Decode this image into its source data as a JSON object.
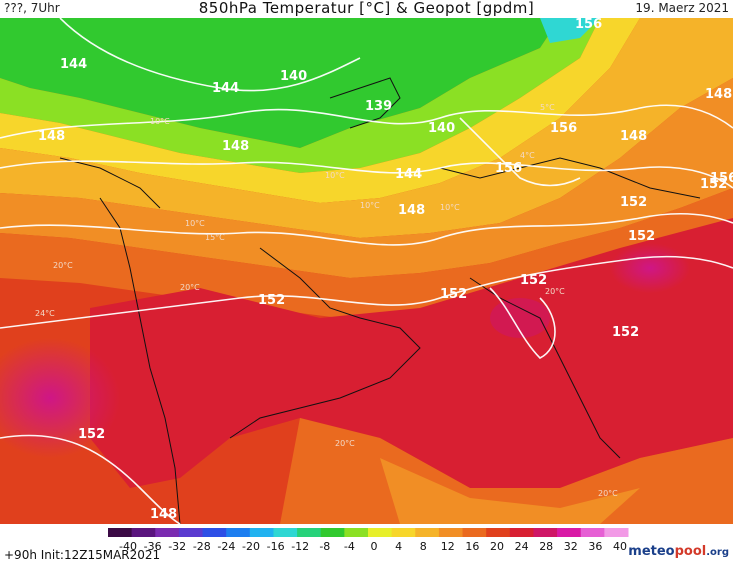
{
  "header": {
    "left_text": "???, 7Uhr",
    "title": "850hPa Temperatur [°C] & Geopot [gpdm]",
    "date": "19. Maerz 2021"
  },
  "footer": {
    "run_info": "+90h Init:12Z15MAR2021",
    "logo_a": "meteo",
    "logo_b": "pool",
    "logo_c": ".org"
  },
  "colorbar": {
    "ticks": [
      "-40",
      "-36",
      "-32",
      "-28",
      "-24",
      "-20",
      "-16",
      "-12",
      "-8",
      "-4",
      "0",
      "4",
      "8",
      "12",
      "16",
      "20",
      "24",
      "28",
      "32",
      "36",
      "40"
    ],
    "colors": [
      "#3b0a45",
      "#5a157e",
      "#7a2bb0",
      "#5a3bd0",
      "#2d4fe6",
      "#1d7ef0",
      "#21b2f0",
      "#2fd7d3",
      "#27d27a",
      "#31c92f",
      "#8be024",
      "#e7ef2b",
      "#f7d62b",
      "#f5b329",
      "#f18e25",
      "#ea6a1f",
      "#e0401d",
      "#d81f32",
      "#cf1666",
      "#d91aa6",
      "#e65fd4",
      "#f29ae6"
    ]
  },
  "map": {
    "geopot_labels": [
      {
        "text": "156"
      },
      {
        "text": "144"
      },
      {
        "text": "144"
      },
      {
        "text": "140"
      },
      {
        "text": "139"
      },
      {
        "text": "140"
      },
      {
        "text": "148"
      },
      {
        "text": "148"
      },
      {
        "text": "148"
      },
      {
        "text": "144"
      },
      {
        "text": "148"
      },
      {
        "text": "156"
      },
      {
        "text": "156"
      },
      {
        "text": "152"
      },
      {
        "text": "156"
      },
      {
        "text": "152"
      },
      {
        "text": "148"
      },
      {
        "text": "152"
      },
      {
        "text": "152"
      },
      {
        "text": "152"
      },
      {
        "text": "152"
      },
      {
        "text": "152"
      },
      {
        "text": "148"
      },
      {
        "text": "152"
      }
    ],
    "temp_labels": [
      {
        "text": "10°C"
      },
      {
        "text": "10°C"
      },
      {
        "text": "15°C"
      },
      {
        "text": "20°C"
      },
      {
        "text": "20°C"
      },
      {
        "text": "24°C"
      },
      {
        "text": "20°C"
      },
      {
        "text": "20°C"
      },
      {
        "text": "20°C"
      },
      {
        "text": "10°C"
      },
      {
        "text": "5°C"
      },
      {
        "text": "10°C"
      },
      {
        "text": "4°C"
      },
      {
        "text": "10°C"
      }
    ]
  }
}
